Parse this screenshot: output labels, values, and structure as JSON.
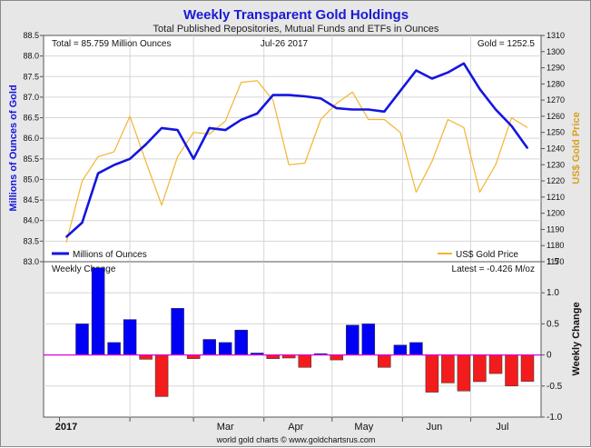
{
  "header": {
    "title": "Weekly Transparent Gold Holdings",
    "subtitle": "Total Published Repositories, Mutual Funds and ETFs in Ounces"
  },
  "footer": {
    "credit": "world gold charts © www.goldchartsrus.com"
  },
  "colors": {
    "holdings": "#1515e0",
    "gold_price": "#f2b52f",
    "positive": "#0000f5",
    "negative": "#f21c1c",
    "zero_line": "#e000e0",
    "plot_bg": "#ffffff",
    "frame_bg": "#e7e7e7",
    "title_color": "#1a1ad6",
    "grid": "#d6d6d6"
  },
  "chart_data": [
    {
      "type": "line",
      "title": "Weekly Transparent Gold Holdings",
      "subtitle": "Total Published Repositories, Mutual Funds and ETFs in Ounces",
      "info": {
        "total": "Total = 85.759 Million Ounces",
        "date": "Jul-26  2017",
        "gold": "Gold = 1252.5"
      },
      "ylabel": "Millions of Ounces of Gold",
      "ylabel_right": "US$ Gold Price",
      "ylim": [
        83.0,
        88.5
      ],
      "ylim_right": [
        1170,
        1310
      ],
      "yticks": [
        "83.0",
        "83.5",
        "84.0",
        "84.5",
        "85.0",
        "85.5",
        "86.0",
        "86.5",
        "87.0",
        "87.5",
        "88.0",
        "88.5"
      ],
      "yticks_right": [
        "1170",
        "1180",
        "1190",
        "1200",
        "1210",
        "1220",
        "1230",
        "1240",
        "1250",
        "1260",
        "1270",
        "1280",
        "1290",
        "1300",
        "1310"
      ],
      "x_ticks": [
        "2017",
        "Mar",
        "Apr",
        "May",
        "Jun",
        "Jul"
      ],
      "legend": {
        "placement": "bottom",
        "holdings": "Millions of Ounces",
        "gold": "US$ Gold Price"
      },
      "series": [
        {
          "name": "Millions of Ounces",
          "axis": "left",
          "x": [
            "2017-01-04",
            "2017-01-11",
            "2017-01-18",
            "2017-01-25",
            "2017-02-01",
            "2017-02-08",
            "2017-02-15",
            "2017-02-22",
            "2017-03-01",
            "2017-03-08",
            "2017-03-15",
            "2017-03-22",
            "2017-03-29",
            "2017-04-05",
            "2017-04-12",
            "2017-04-19",
            "2017-04-26",
            "2017-05-03",
            "2017-05-10",
            "2017-05-17",
            "2017-05-24",
            "2017-05-31",
            "2017-06-07",
            "2017-06-14",
            "2017-06-21",
            "2017-06-28",
            "2017-07-05",
            "2017-07-12",
            "2017-07-19",
            "2017-07-26"
          ],
          "values": [
            83.6,
            83.95,
            85.15,
            85.35,
            85.5,
            85.85,
            86.25,
            86.2,
            85.5,
            86.25,
            86.2,
            86.45,
            86.6,
            87.05,
            87.05,
            87.02,
            86.97,
            86.73,
            86.7,
            86.7,
            86.65,
            87.15,
            87.65,
            87.45,
            87.6,
            87.82,
            87.2,
            86.7,
            86.3,
            85.76
          ]
        },
        {
          "name": "US$ Gold Price",
          "axis": "right",
          "x": [
            "2017-01-04",
            "2017-01-11",
            "2017-01-18",
            "2017-01-25",
            "2017-02-01",
            "2017-02-08",
            "2017-02-15",
            "2017-02-22",
            "2017-03-01",
            "2017-03-08",
            "2017-03-15",
            "2017-03-22",
            "2017-03-29",
            "2017-04-05",
            "2017-04-12",
            "2017-04-19",
            "2017-04-26",
            "2017-05-03",
            "2017-05-10",
            "2017-05-17",
            "2017-05-24",
            "2017-05-31",
            "2017-06-07",
            "2017-06-14",
            "2017-06-21",
            "2017-06-28",
            "2017-07-05",
            "2017-07-12",
            "2017-07-19",
            "2017-07-26"
          ],
          "values": [
            1182,
            1220,
            1235,
            1238,
            1260,
            1232,
            1205,
            1235,
            1250,
            1249,
            1257,
            1281,
            1282,
            1270,
            1230,
            1231,
            1258,
            1268,
            1275,
            1258,
            1258,
            1250,
            1213,
            1232,
            1258,
            1253,
            1213,
            1230,
            1259,
            1253
          ]
        }
      ]
    },
    {
      "type": "bar",
      "title": "Weekly Change",
      "info": "Latest = -0.426 M/oz",
      "ylabel": "Weekly Change",
      "ylim": [
        -1.0,
        1.5
      ],
      "yticks": [
        "-1.0",
        "-0.5",
        "0",
        "0.5",
        "1.0",
        "1.5"
      ],
      "x": [
        "2017-01-11",
        "2017-01-18",
        "2017-01-25",
        "2017-02-01",
        "2017-02-08",
        "2017-02-15",
        "2017-02-22",
        "2017-03-01",
        "2017-03-08",
        "2017-03-15",
        "2017-03-22",
        "2017-03-29",
        "2017-04-05",
        "2017-04-12",
        "2017-04-19",
        "2017-04-26",
        "2017-05-03",
        "2017-05-10",
        "2017-05-17",
        "2017-05-24",
        "2017-05-31",
        "2017-06-07",
        "2017-06-14",
        "2017-06-21",
        "2017-06-28",
        "2017-07-05",
        "2017-07-12",
        "2017-07-19",
        "2017-07-26"
      ],
      "values": [
        0.5,
        1.4,
        0.2,
        0.57,
        -0.07,
        -0.67,
        0.75,
        -0.06,
        0.25,
        0.2,
        0.4,
        0.03,
        -0.06,
        -0.05,
        -0.2,
        0.02,
        -0.08,
        0.48,
        0.5,
        -0.2,
        0.16,
        0.2,
        -0.6,
        -0.45,
        -0.58,
        -0.43,
        -0.3,
        -0.5,
        -0.426
      ]
    }
  ]
}
